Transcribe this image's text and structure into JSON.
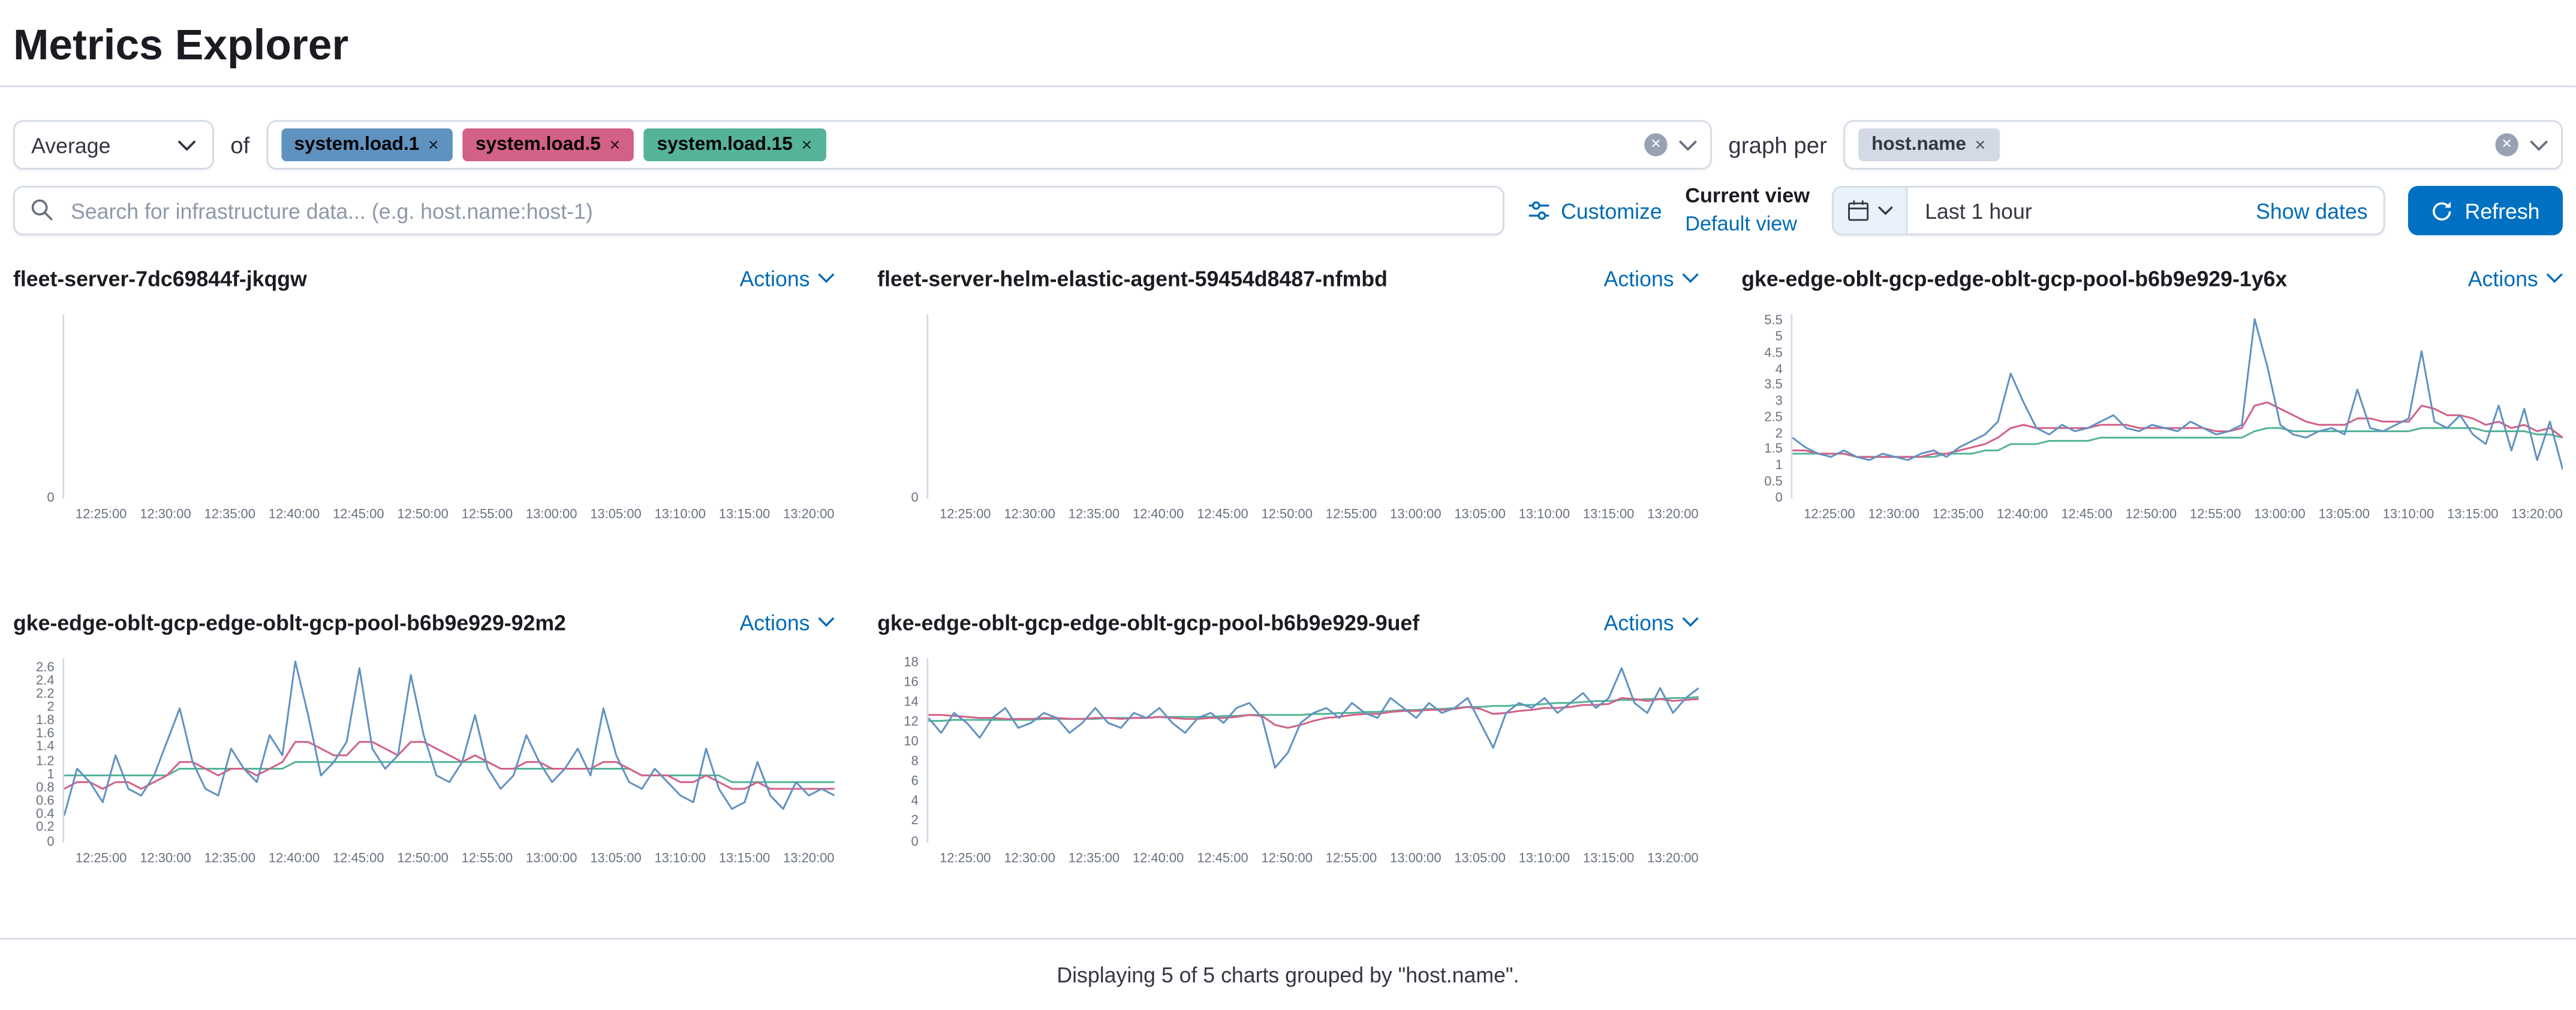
{
  "page": {
    "title": "Metrics Explorer",
    "footer": "Displaying 5 of 5 charts grouped by \"host.name\"."
  },
  "controls": {
    "aggregation_value": "Average",
    "of_label": "of",
    "metric_badges": [
      {
        "label": "system.load.1",
        "color": "#6092c0",
        "text_color": "#000000"
      },
      {
        "label": "system.load.5",
        "color": "#d36086",
        "text_color": "#000000"
      },
      {
        "label": "system.load.15",
        "color": "#54b399",
        "text_color": "#000000"
      }
    ],
    "graph_per_label": "graph per",
    "group_badges": [
      {
        "label": "host.name",
        "color": "#d3dae6",
        "text_color": "#343741"
      }
    ],
    "search_placeholder": "Search for infrastructure data... (e.g. host.name:host-1)",
    "customize_label": "Customize",
    "current_view_label": "Current view",
    "default_view_label": "Default view",
    "time_range_value": "Last 1 hour",
    "show_dates_label": "Show dates",
    "refresh_label": "Refresh"
  },
  "chart_actions_label": "Actions",
  "icons": [
    "search-icon",
    "customize-sliders-icon",
    "calendar-icon",
    "chevron-down-icon",
    "clear-circle-icon",
    "badge-remove-icon",
    "refresh-icon"
  ],
  "chart_data": [
    {
      "type": "line",
      "title": "fleet-server-7dc69844f-jkqgw",
      "x_labels": [
        "12:25:00",
        "12:30:00",
        "12:35:00",
        "12:40:00",
        "12:45:00",
        "12:50:00",
        "12:55:00",
        "13:00:00",
        "13:05:00",
        "13:10:00",
        "13:15:00",
        "13:20:00"
      ],
      "yticks": [
        "0"
      ],
      "ymax": 1,
      "series": []
    },
    {
      "type": "line",
      "title": "fleet-server-helm-elastic-agent-59454d8487-nfmbd",
      "x_labels": [
        "12:25:00",
        "12:30:00",
        "12:35:00",
        "12:40:00",
        "12:45:00",
        "12:50:00",
        "12:55:00",
        "13:00:00",
        "13:05:00",
        "13:10:00",
        "13:15:00",
        "13:20:00"
      ],
      "yticks": [
        "0"
      ],
      "ymax": 1,
      "series": []
    },
    {
      "type": "line",
      "title": "gke-edge-oblt-gcp-edge-oblt-gcp-pool-b6b9e929-1y6x",
      "x_labels": [
        "12:25:00",
        "12:30:00",
        "12:35:00",
        "12:40:00",
        "12:45:00",
        "12:50:00",
        "12:55:00",
        "13:00:00",
        "13:05:00",
        "13:10:00",
        "13:15:00",
        "13:20:00"
      ],
      "yticks": [
        "0",
        "0.5",
        "1",
        "1.5",
        "2",
        "2.5",
        "3",
        "3.5",
        "4",
        "4.5",
        "5",
        "5.5"
      ],
      "ymax": 5.75,
      "series": [
        {
          "name": "system.load.1",
          "color": "#6092c0",
          "values": [
            1.9,
            1.6,
            1.4,
            1.3,
            1.5,
            1.3,
            1.2,
            1.4,
            1.3,
            1.2,
            1.4,
            1.5,
            1.3,
            1.6,
            1.8,
            2.0,
            2.4,
            3.9,
            3.0,
            2.2,
            2.0,
            2.3,
            2.1,
            2.2,
            2.4,
            2.6,
            2.2,
            2.1,
            2.3,
            2.2,
            2.1,
            2.4,
            2.2,
            2.0,
            2.1,
            2.3,
            5.6,
            4.1,
            2.3,
            2.0,
            1.9,
            2.1,
            2.2,
            2.0,
            3.4,
            2.2,
            2.1,
            2.3,
            2.5,
            4.6,
            2.4,
            2.2,
            2.6,
            2.0,
            1.7,
            2.9,
            1.5,
            2.8,
            1.2,
            2.4,
            0.9
          ]
        },
        {
          "name": "system.load.5",
          "color": "#d36086",
          "values": [
            1.5,
            1.5,
            1.4,
            1.4,
            1.4,
            1.3,
            1.3,
            1.3,
            1.3,
            1.3,
            1.3,
            1.4,
            1.4,
            1.5,
            1.6,
            1.7,
            1.9,
            2.2,
            2.3,
            2.2,
            2.2,
            2.2,
            2.2,
            2.2,
            2.3,
            2.3,
            2.3,
            2.2,
            2.2,
            2.2,
            2.2,
            2.2,
            2.2,
            2.1,
            2.1,
            2.2,
            2.9,
            3.0,
            2.8,
            2.6,
            2.4,
            2.3,
            2.3,
            2.3,
            2.5,
            2.5,
            2.4,
            2.4,
            2.4,
            2.9,
            2.8,
            2.6,
            2.6,
            2.5,
            2.3,
            2.4,
            2.2,
            2.3,
            2.1,
            2.2,
            1.9
          ]
        },
        {
          "name": "system.load.15",
          "color": "#54b399",
          "values": [
            1.4,
            1.4,
            1.4,
            1.4,
            1.4,
            1.3,
            1.3,
            1.3,
            1.3,
            1.3,
            1.3,
            1.3,
            1.4,
            1.4,
            1.4,
            1.5,
            1.5,
            1.7,
            1.7,
            1.7,
            1.8,
            1.8,
            1.8,
            1.8,
            1.9,
            1.9,
            1.9,
            1.9,
            1.9,
            1.9,
            1.9,
            1.9,
            1.9,
            1.9,
            1.9,
            1.9,
            2.1,
            2.2,
            2.2,
            2.1,
            2.1,
            2.1,
            2.1,
            2.1,
            2.1,
            2.1,
            2.1,
            2.1,
            2.1,
            2.2,
            2.2,
            2.2,
            2.2,
            2.2,
            2.1,
            2.1,
            2.1,
            2.1,
            2.0,
            2.0,
            1.9
          ]
        }
      ]
    },
    {
      "type": "line",
      "title": "gke-edge-oblt-gcp-edge-oblt-gcp-pool-b6b9e929-92m2",
      "x_labels": [
        "12:25:00",
        "12:30:00",
        "12:35:00",
        "12:40:00",
        "12:45:00",
        "12:50:00",
        "12:55:00",
        "13:00:00",
        "13:05:00",
        "13:10:00",
        "13:15:00",
        "13:20:00"
      ],
      "yticks": [
        "0",
        "0.2",
        "0.4",
        "0.6",
        "0.8",
        "1",
        "1.2",
        "1.4",
        "1.6",
        "1.8",
        "2",
        "2.2",
        "2.4",
        "2.6"
      ],
      "ymax": 2.75,
      "series": [
        {
          "name": "system.load.1",
          "color": "#6092c0",
          "values": [
            0.4,
            1.1,
            0.9,
            0.6,
            1.3,
            0.8,
            0.7,
            1.0,
            1.5,
            2.0,
            1.2,
            0.8,
            0.7,
            1.4,
            1.1,
            0.9,
            1.6,
            1.3,
            2.7,
            1.9,
            1.0,
            1.2,
            1.5,
            2.6,
            1.4,
            1.1,
            1.3,
            2.5,
            1.6,
            1.0,
            0.9,
            1.2,
            1.9,
            1.1,
            0.8,
            1.0,
            1.6,
            1.2,
            0.9,
            1.1,
            1.4,
            1.0,
            2.0,
            1.3,
            0.9,
            0.8,
            1.1,
            0.9,
            0.7,
            0.6,
            1.4,
            0.8,
            0.5,
            0.6,
            1.2,
            0.7,
            0.5,
            0.9,
            0.7,
            0.8,
            0.7
          ]
        },
        {
          "name": "system.load.5",
          "color": "#d36086",
          "values": [
            0.8,
            0.9,
            0.9,
            0.8,
            0.9,
            0.9,
            0.8,
            0.9,
            1.0,
            1.2,
            1.2,
            1.1,
            1.0,
            1.1,
            1.1,
            1.0,
            1.1,
            1.2,
            1.5,
            1.5,
            1.4,
            1.3,
            1.3,
            1.5,
            1.5,
            1.4,
            1.3,
            1.5,
            1.5,
            1.4,
            1.3,
            1.2,
            1.3,
            1.2,
            1.1,
            1.1,
            1.2,
            1.2,
            1.1,
            1.1,
            1.1,
            1.1,
            1.2,
            1.2,
            1.1,
            1.0,
            1.0,
            1.0,
            0.9,
            0.9,
            1.0,
            0.9,
            0.8,
            0.8,
            0.9,
            0.8,
            0.8,
            0.8,
            0.8,
            0.8,
            0.8
          ]
        },
        {
          "name": "system.load.15",
          "color": "#54b399",
          "values": [
            1.0,
            1.0,
            1.0,
            1.0,
            1.0,
            1.0,
            1.0,
            1.0,
            1.0,
            1.1,
            1.1,
            1.1,
            1.1,
            1.1,
            1.1,
            1.1,
            1.1,
            1.1,
            1.2,
            1.2,
            1.2,
            1.2,
            1.2,
            1.2,
            1.2,
            1.2,
            1.2,
            1.2,
            1.2,
            1.2,
            1.2,
            1.2,
            1.2,
            1.2,
            1.1,
            1.1,
            1.1,
            1.1,
            1.1,
            1.1,
            1.1,
            1.1,
            1.1,
            1.1,
            1.1,
            1.0,
            1.0,
            1.0,
            1.0,
            1.0,
            1.0,
            1.0,
            0.9,
            0.9,
            0.9,
            0.9,
            0.9,
            0.9,
            0.9,
            0.9,
            0.9
          ]
        }
      ]
    },
    {
      "type": "line",
      "title": "gke-edge-oblt-gcp-edge-oblt-gcp-pool-b6b9e929-9uef",
      "x_labels": [
        "12:25:00",
        "12:30:00",
        "12:35:00",
        "12:40:00",
        "12:45:00",
        "12:50:00",
        "12:55:00",
        "13:00:00",
        "13:05:00",
        "13:10:00",
        "13:15:00",
        "13:20:00"
      ],
      "yticks": [
        "0",
        "2",
        "4",
        "6",
        "8",
        "10",
        "12",
        "14",
        "16",
        "18"
      ],
      "ymax": 18.5,
      "series": [
        {
          "name": "system.load.1",
          "color": "#6092c0",
          "values": [
            12.5,
            11.0,
            13.0,
            12.0,
            10.5,
            12.5,
            13.5,
            11.5,
            12.0,
            13.0,
            12.5,
            11.0,
            12.0,
            13.5,
            12.0,
            11.5,
            13.0,
            12.5,
            13.5,
            12.0,
            11.0,
            12.5,
            13.0,
            12.0,
            13.5,
            14.0,
            12.5,
            7.5,
            9.0,
            12.0,
            13.0,
            13.5,
            12.5,
            14.0,
            13.0,
            12.5,
            14.5,
            13.5,
            12.5,
            14.0,
            13.0,
            13.5,
            14.5,
            12.0,
            9.5,
            13.0,
            14.0,
            13.5,
            14.5,
            13.0,
            14.0,
            15.0,
            13.5,
            14.5,
            17.5,
            14.0,
            13.0,
            15.5,
            13.0,
            14.5,
            15.5
          ]
        },
        {
          "name": "system.load.5",
          "color": "#d36086",
          "values": [
            12.8,
            12.8,
            12.7,
            12.6,
            12.5,
            12.5,
            12.4,
            12.4,
            12.4,
            12.5,
            12.5,
            12.4,
            12.4,
            12.5,
            12.5,
            12.4,
            12.5,
            12.5,
            12.6,
            12.5,
            12.4,
            12.4,
            12.5,
            12.5,
            12.6,
            12.8,
            12.7,
            11.8,
            11.5,
            11.8,
            12.2,
            12.5,
            12.6,
            12.8,
            12.9,
            12.9,
            13.1,
            13.2,
            13.2,
            13.3,
            13.3,
            13.4,
            13.6,
            13.4,
            12.9,
            13.0,
            13.2,
            13.3,
            13.5,
            13.5,
            13.6,
            13.8,
            13.8,
            13.9,
            14.5,
            14.4,
            14.2,
            14.4,
            14.2,
            14.3,
            14.4
          ]
        },
        {
          "name": "system.load.15",
          "color": "#54b399",
          "values": [
            12.2,
            12.2,
            12.3,
            12.3,
            12.3,
            12.3,
            12.3,
            12.3,
            12.3,
            12.4,
            12.4,
            12.4,
            12.4,
            12.4,
            12.5,
            12.5,
            12.5,
            12.5,
            12.6,
            12.6,
            12.6,
            12.6,
            12.6,
            12.7,
            12.7,
            12.8,
            12.8,
            12.8,
            12.8,
            12.8,
            12.9,
            12.9,
            13.0,
            13.0,
            13.1,
            13.1,
            13.2,
            13.3,
            13.3,
            13.4,
            13.4,
            13.5,
            13.6,
            13.6,
            13.7,
            13.7,
            13.8,
            13.8,
            13.9,
            14.0,
            14.0,
            14.1,
            14.2,
            14.2,
            14.3,
            14.3,
            14.4,
            14.4,
            14.5,
            14.5,
            14.6
          ]
        }
      ]
    }
  ]
}
